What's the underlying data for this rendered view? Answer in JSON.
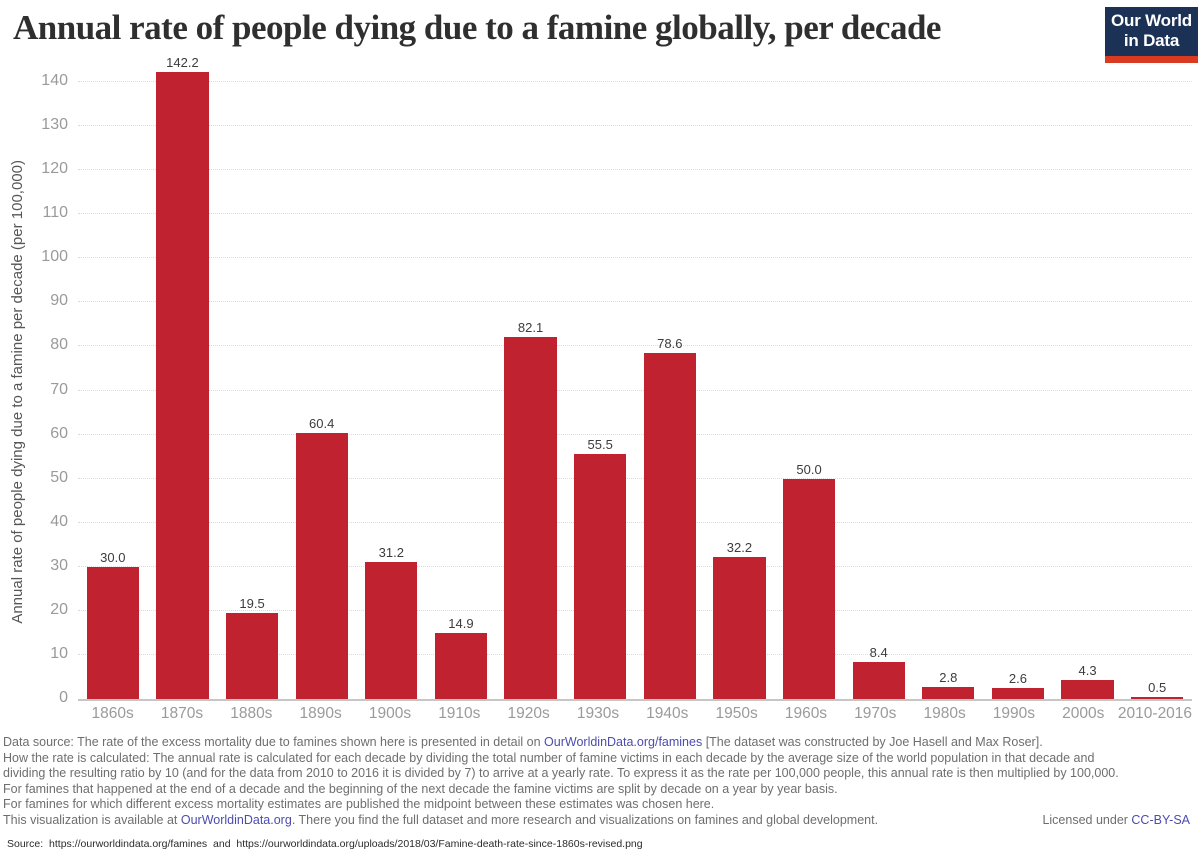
{
  "header": {
    "title": "Annual rate of people dying due to a famine globally, per decade",
    "logo": {
      "line1": "Our World",
      "line2": "in Data",
      "bg_color": "#1b3155",
      "stripe_color": "#d93a22"
    }
  },
  "chart_data": {
    "type": "bar",
    "title": "Annual rate of people dying due to a famine globally, per decade",
    "xlabel": "",
    "ylabel": "Annual rate of people dying due to a famine per decade (per 100,000)",
    "categories": [
      "1860s",
      "1870s",
      "1880s",
      "1890s",
      "1900s",
      "1910s",
      "1920s",
      "1930s",
      "1940s",
      "1950s",
      "1960s",
      "1970s",
      "1980s",
      "1990s",
      "2000s",
      "2010-2016"
    ],
    "values": [
      30.0,
      142.2,
      19.5,
      60.4,
      31.2,
      14.9,
      82.1,
      55.5,
      78.6,
      32.2,
      50.0,
      8.4,
      2.8,
      2.6,
      4.3,
      0.5
    ],
    "value_labels": [
      "30.0",
      "142.2",
      "19.5",
      "60.4",
      "31.2",
      "14.9",
      "82.1",
      "55.5",
      "78.6",
      "32.2",
      "50.0",
      "8.4",
      "2.8",
      "2.6",
      "4.3",
      "0.5"
    ],
    "ylim": [
      0,
      145
    ],
    "yticks": [
      0,
      10,
      20,
      30,
      40,
      50,
      60,
      70,
      80,
      90,
      100,
      110,
      120,
      130,
      140
    ],
    "grid": true,
    "legend": "none",
    "bar_color": "#c0222f"
  },
  "footer": {
    "line1": {
      "pre": "Data source: The rate of the excess mortality due to famines shown here is presented in detail on ",
      "link": "OurWorldinData.org/famines",
      "post": " [The dataset was constructed by Joe Hasell and Max Roser]."
    },
    "line2": "How the rate is calculated: The annual rate is calculated for each decade by dividing the total number of famine victims in each decade by the average size of the world population in that decade and",
    "line3": "dividing the resulting ratio by 10 (and for the data from 2010 to 2016 it is divided by 7) to arrive at a yearly rate. To express it as the rate per 100,000 people, this annual rate is then multiplied by 100,000.",
    "line4": "For famines that happened at the end of a decade and the beginning of the next decade the famine victims are split by decade on a year by year basis.",
    "line5": "For famines for which different excess mortality estimates are published the midpoint between these estimates was chosen here.",
    "line6": {
      "pre": "This visualization is available at ",
      "link": "OurWorldinData.org",
      "post": ". There you find the full dataset and more research and visualizations on famines and global development."
    },
    "license": {
      "pre": "Licensed under ",
      "link": "CC-BY-SA"
    },
    "source_line": "Source:  https://ourworldindata.org/famines  and  https://ourworldindata.org/uploads/2018/03/Famine-death-rate-since-1860s-revised.png"
  }
}
